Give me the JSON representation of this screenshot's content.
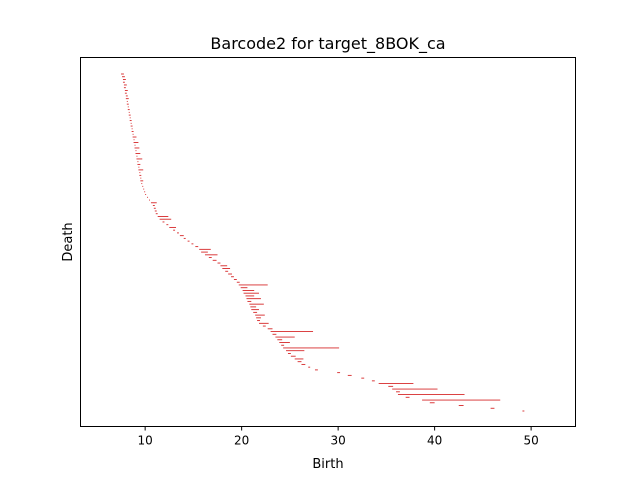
{
  "chart_data": {
    "type": "barcode",
    "title": "Barcode2 for target_8BOK_ca",
    "xlabel": "Birth",
    "ylabel": "Death",
    "xlim": [
      3.3,
      54.6
    ],
    "xticks": [
      10,
      20,
      30,
      40,
      50
    ],
    "y_tick_labels_shown": false,
    "grid": false,
    "bar_color": "#d62728",
    "bars": [
      [
        7.5,
        7.8
      ],
      [
        7.6,
        7.9
      ],
      [
        7.7,
        8.0
      ],
      [
        7.7,
        7.9
      ],
      [
        7.8,
        8.1
      ],
      [
        7.8,
        8.0
      ],
      [
        7.9,
        8.2
      ],
      [
        7.9,
        8.1
      ],
      [
        8.0,
        8.2
      ],
      [
        8.0,
        8.3
      ],
      [
        8.1,
        8.2
      ],
      [
        8.1,
        8.3
      ],
      [
        8.2,
        8.3
      ],
      [
        8.2,
        8.4
      ],
      [
        8.3,
        8.4
      ],
      [
        8.3,
        8.5
      ],
      [
        8.4,
        8.5
      ],
      [
        8.4,
        8.6
      ],
      [
        8.5,
        8.6
      ],
      [
        8.5,
        8.7
      ],
      [
        8.6,
        8.7
      ],
      [
        8.6,
        8.8
      ],
      [
        8.7,
        8.8
      ],
      [
        8.7,
        9.1
      ],
      [
        8.8,
        8.9
      ],
      [
        8.8,
        9.3
      ],
      [
        8.9,
        9.0
      ],
      [
        8.9,
        9.4
      ],
      [
        9.0,
        9.1
      ],
      [
        9.0,
        9.5
      ],
      [
        9.1,
        9.2
      ],
      [
        9.1,
        9.7
      ],
      [
        9.2,
        9.3
      ],
      [
        9.2,
        9.5
      ],
      [
        9.3,
        9.4
      ],
      [
        9.3,
        9.8
      ],
      [
        9.4,
        9.5
      ],
      [
        9.4,
        9.6
      ],
      [
        9.5,
        9.6
      ],
      [
        9.5,
        9.8
      ],
      [
        9.6,
        9.7
      ],
      [
        9.7,
        9.8
      ],
      [
        9.8,
        9.9
      ],
      [
        9.9,
        10.0
      ],
      [
        10.0,
        10.1
      ],
      [
        10.2,
        10.3
      ],
      [
        10.4,
        10.5
      ],
      [
        10.6,
        11.2
      ],
      [
        10.8,
        11.0
      ],
      [
        10.9,
        11.1
      ],
      [
        11.0,
        11.2
      ],
      [
        11.1,
        11.3
      ],
      [
        11.3,
        12.4
      ],
      [
        11.5,
        12.7
      ],
      [
        11.8,
        12.0
      ],
      [
        12.2,
        12.4
      ],
      [
        12.5,
        13.2
      ],
      [
        12.9,
        13.1
      ],
      [
        13.3,
        13.5
      ],
      [
        13.6,
        14.0
      ],
      [
        14.0,
        14.2
      ],
      [
        14.4,
        14.6
      ],
      [
        14.8,
        15.0
      ],
      [
        15.2,
        15.5
      ],
      [
        15.6,
        16.8
      ],
      [
        15.8,
        16.5
      ],
      [
        16.2,
        17.5
      ],
      [
        16.6,
        16.9
      ],
      [
        17.0,
        17.4
      ],
      [
        17.5,
        17.8
      ],
      [
        17.8,
        18.5
      ],
      [
        18.0,
        18.8
      ],
      [
        18.3,
        18.6
      ],
      [
        18.6,
        19.0
      ],
      [
        18.9,
        19.2
      ],
      [
        19.2,
        19.5
      ],
      [
        19.5,
        19.8
      ],
      [
        19.7,
        22.7
      ],
      [
        19.9,
        20.6
      ],
      [
        20.1,
        21.3
      ],
      [
        20.2,
        21.8
      ],
      [
        20.4,
        21.3
      ],
      [
        20.5,
        22.0
      ],
      [
        20.6,
        21.0
      ],
      [
        20.8,
        22.3
      ],
      [
        20.9,
        21.5
      ],
      [
        21.0,
        21.8
      ],
      [
        21.2,
        21.6
      ],
      [
        21.4,
        22.4
      ],
      [
        21.5,
        22.0
      ],
      [
        21.6,
        21.9
      ],
      [
        21.8,
        22.8
      ],
      [
        22.2,
        22.5
      ],
      [
        22.7,
        23.2
      ],
      [
        23.0,
        27.4
      ],
      [
        23.2,
        23.6
      ],
      [
        23.5,
        25.5
      ],
      [
        23.7,
        24.2
      ],
      [
        23.9,
        25.0
      ],
      [
        24.1,
        24.4
      ],
      [
        24.3,
        30.1
      ],
      [
        24.6,
        26.5
      ],
      [
        24.8,
        25.1
      ],
      [
        25.1,
        25.6
      ],
      [
        25.5,
        26.4
      ],
      [
        25.8,
        26.2
      ],
      [
        26.2,
        26.6
      ],
      [
        26.9,
        27.1
      ],
      [
        27.6,
        27.9
      ],
      [
        29.9,
        30.2
      ],
      [
        31.0,
        31.4
      ],
      [
        32.4,
        32.7
      ],
      [
        33.5,
        33.8
      ],
      [
        34.2,
        37.8
      ],
      [
        35.2,
        35.7
      ],
      [
        35.6,
        40.3
      ],
      [
        36.0,
        36.4
      ],
      [
        36.2,
        43.1
      ],
      [
        37.0,
        37.4
      ],
      [
        38.7,
        46.8
      ],
      [
        39.5,
        40.0
      ],
      [
        42.5,
        43.0
      ],
      [
        45.8,
        46.2
      ],
      [
        49.1,
        49.3
      ]
    ]
  }
}
